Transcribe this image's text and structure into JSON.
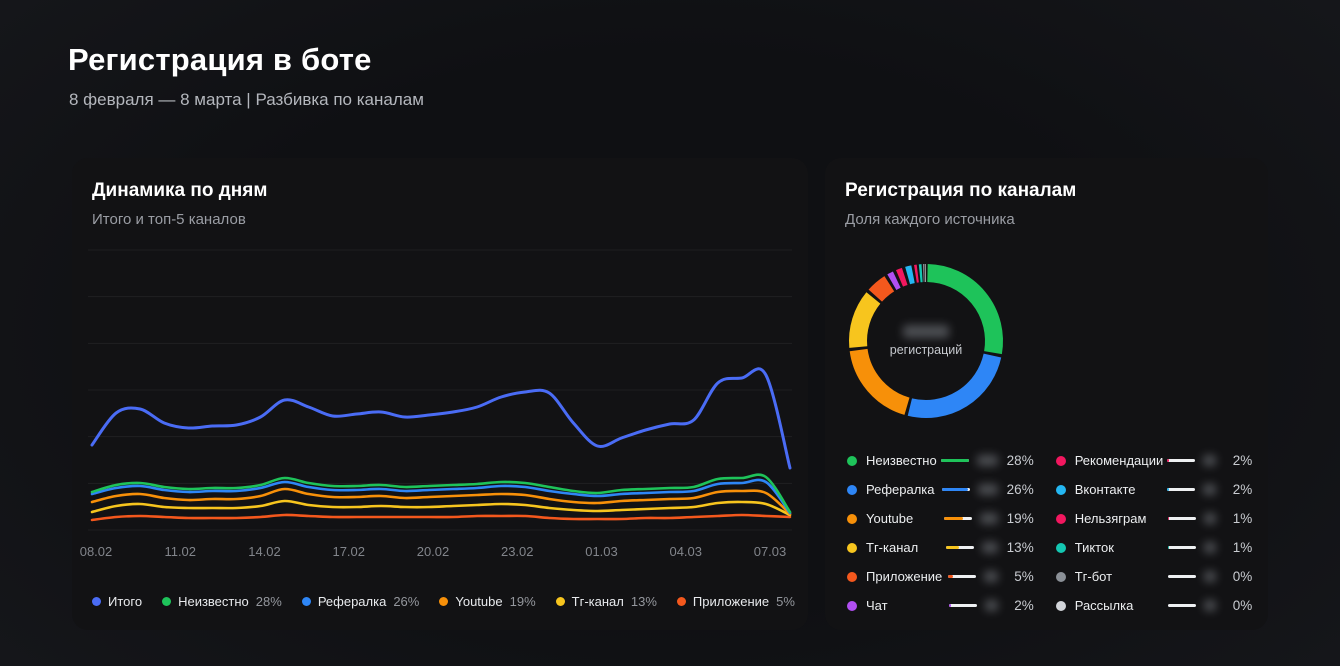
{
  "page": {
    "title": "Регистрация в боте",
    "subtitle": "8 февраля — 8 марта | Разбивка по каналам"
  },
  "line_card": {
    "title": "Динамика по дням",
    "subtitle": "Итого и топ-5 каналов"
  },
  "donut_card": {
    "title": "Регистрация по каналам",
    "subtitle": "Доля каждого источника",
    "center_label": "регистраций",
    "center_value_redacted": true
  },
  "chart_data": [
    {
      "type": "line",
      "title": "Динамика по дням",
      "subtitle": "Итого и топ-5 каналов",
      "x_tick_labels": [
        "08.02",
        "11.02",
        "14.02",
        "17.02",
        "20.02",
        "23.02",
        "01.03",
        "04.03",
        "07.03"
      ],
      "x_range": "08.02 — 08.03, 30 daily points",
      "ylabel": "",
      "y_axis_unlabeled": true,
      "values_note": "y values are relative units estimated from pixels (no y-axis labels shown)",
      "grid_horizontal": true,
      "legend_position": "bottom",
      "series": [
        {
          "name": "Итого",
          "percent_label": "",
          "color": "#4a6cf5",
          "values": [
            90,
            122,
            126,
            112,
            107,
            109,
            110,
            118,
            135,
            128,
            119,
            121,
            123,
            118,
            120,
            123,
            128,
            138,
            143,
            142,
            112,
            89,
            97,
            105,
            111,
            115,
            152,
            157,
            160,
            67
          ]
        },
        {
          "name": "Неизвестно",
          "percent_label": "28%",
          "color": "#1ec35a",
          "values": [
            43,
            50,
            52,
            48,
            46,
            47,
            47,
            50,
            57,
            52,
            49,
            49,
            50,
            48,
            49,
            50,
            51,
            53,
            52,
            48,
            44,
            42,
            45,
            46,
            47,
            48,
            56,
            57,
            58,
            23
          ]
        },
        {
          "name": "Рефералка",
          "percent_label": "26%",
          "color": "#2e86f6",
          "values": [
            41,
            47,
            49,
            45,
            43,
            44,
            44,
            47,
            53,
            48,
            45,
            45,
            46,
            44,
            45,
            46,
            47,
            49,
            48,
            44,
            41,
            39,
            41,
            42,
            43,
            44,
            51,
            52,
            53,
            22
          ]
        },
        {
          "name": "Youtube",
          "percent_label": "19%",
          "color": "#f79009",
          "values": [
            33,
            39,
            41,
            37,
            35,
            36,
            36,
            39,
            46,
            41,
            38,
            38,
            39,
            37,
            38,
            39,
            40,
            41,
            40,
            36,
            33,
            32,
            34,
            35,
            36,
            37,
            43,
            44,
            42,
            21
          ]
        },
        {
          "name": "Тг-канал",
          "percent_label": "13%",
          "color": "#f7c51e",
          "values": [
            23,
            29,
            31,
            28,
            27,
            27,
            27,
            29,
            34,
            30,
            28,
            28,
            29,
            28,
            28,
            29,
            30,
            31,
            30,
            27,
            25,
            24,
            25,
            26,
            27,
            28,
            32,
            33,
            31,
            20
          ]
        },
        {
          "name": "Приложение",
          "percent_label": "5%",
          "color": "#f4581d",
          "values": [
            15,
            18,
            19,
            18,
            17,
            17,
            17,
            18,
            20,
            19,
            18,
            18,
            18,
            18,
            18,
            18,
            19,
            19,
            19,
            17,
            16,
            16,
            16,
            17,
            17,
            18,
            19,
            20,
            19,
            18
          ]
        }
      ]
    },
    {
      "type": "donut",
      "title": "Регистрация по каналам",
      "subtitle": "Доля каждого источника",
      "center": {
        "value_redacted": true,
        "label": "регистраций"
      },
      "legend_bar_max_percent": 28,
      "slices": [
        {
          "label": "Неизвестно",
          "percent": 28,
          "percent_label": "28%",
          "color": "#1ec35a",
          "count_redacted": true
        },
        {
          "label": "Рефералка",
          "percent": 26,
          "percent_label": "26%",
          "color": "#2e86f6",
          "count_redacted": true
        },
        {
          "label": "Youtube",
          "percent": 19,
          "percent_label": "19%",
          "color": "#f79009",
          "count_redacted": true
        },
        {
          "label": "Тг-канал",
          "percent": 13,
          "percent_label": "13%",
          "color": "#f7c51e",
          "count_redacted": true
        },
        {
          "label": "Приложение",
          "percent": 5,
          "percent_label": "5%",
          "color": "#f4581d",
          "count_redacted": true
        },
        {
          "label": "Чат",
          "percent": 2,
          "percent_label": "2%",
          "color": "#b14ff2",
          "count_redacted": true
        },
        {
          "label": "Рекомендации",
          "percent": 2,
          "percent_label": "2%",
          "color": "#f2175f",
          "count_redacted": true
        },
        {
          "label": "Вконтакте",
          "percent": 2,
          "percent_label": "2%",
          "color": "#24b7f2",
          "count_redacted": true
        },
        {
          "label": "Нельзяграм",
          "percent": 1,
          "percent_label": "1%",
          "color": "#f2175f",
          "count_redacted": true
        },
        {
          "label": "Тикток",
          "percent": 1,
          "percent_label": "1%",
          "color": "#14c7b2",
          "count_redacted": true
        },
        {
          "label": "Тг-бот",
          "percent": 0,
          "percent_label": "0%",
          "color": "#8b9097",
          "count_redacted": true
        },
        {
          "label": "Рассылка",
          "percent": 0,
          "percent_label": "0%",
          "color": "#d2d5da",
          "count_redacted": true
        }
      ]
    }
  ]
}
